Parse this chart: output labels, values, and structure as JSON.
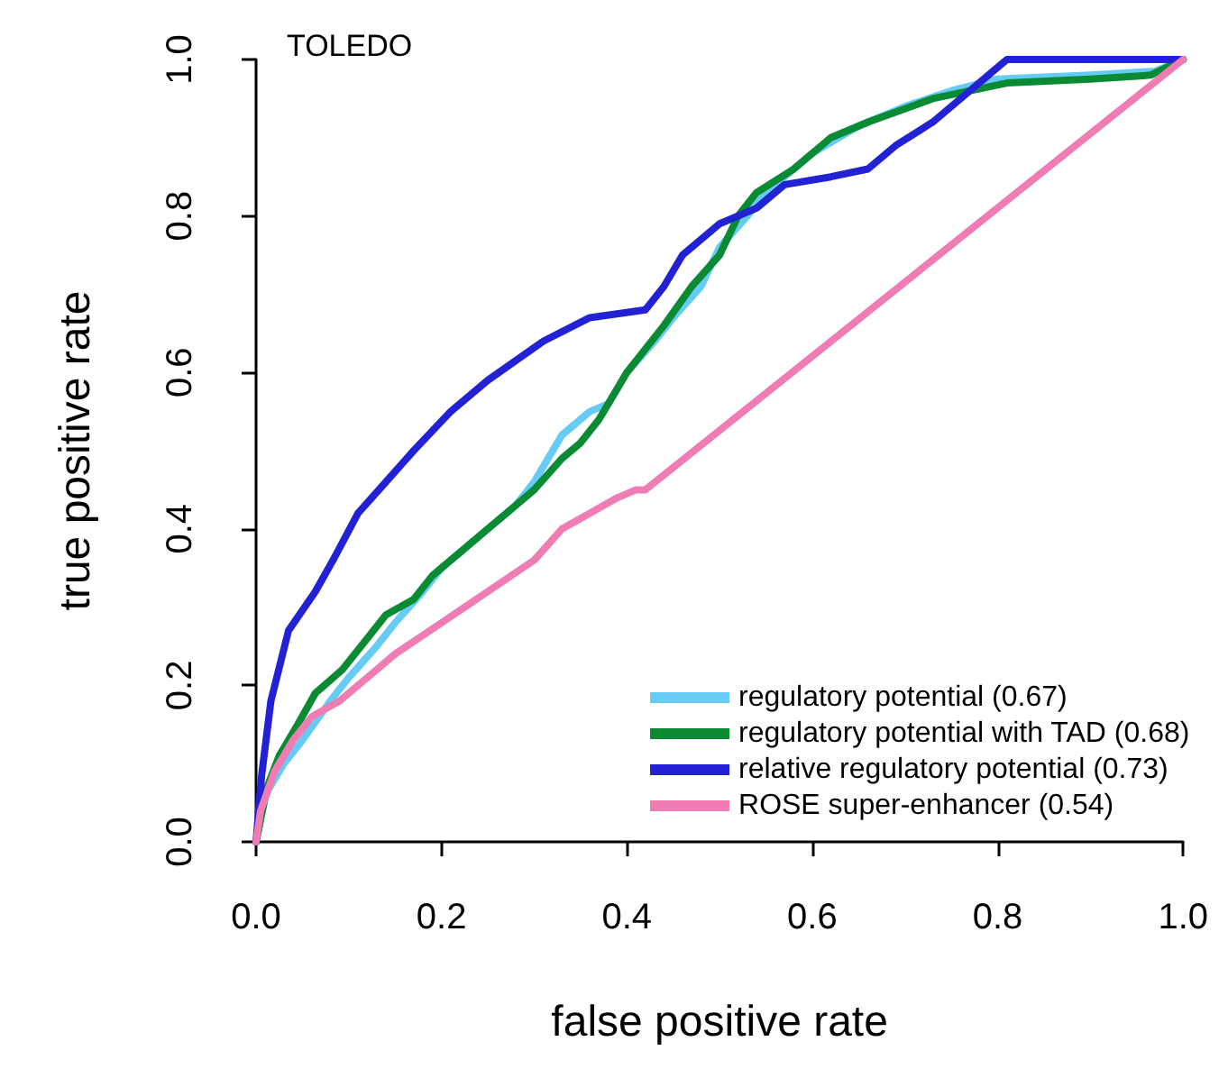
{
  "chart_data": {
    "type": "line",
    "title": "TOLEDO",
    "xlabel": "false positive rate",
    "ylabel": "true positive rate",
    "xlim": [
      0,
      1
    ],
    "ylim": [
      0,
      1
    ],
    "xticks": [
      {
        "value": 0,
        "label": "0.0"
      },
      0.2,
      0.4,
      0.6,
      0.8,
      {
        "value": 1,
        "label": "1.0"
      }
    ],
    "yticks": [
      {
        "value": 0,
        "label": "0.0"
      },
      0.2,
      0.4,
      0.6,
      0.8,
      {
        "value": 1,
        "label": "1.0"
      }
    ],
    "grid": false,
    "legend": "bottom right",
    "marker": "none",
    "line_style": "solid",
    "series": [
      {
        "name": "regulatory potential (0.67)",
        "color": "#66ccf5",
        "x": [
          0,
          0.01,
          0.03,
          0.05,
          0.08,
          0.1,
          0.13,
          0.15,
          0.18,
          0.2,
          0.23,
          0.25,
          0.28,
          0.3,
          0.33,
          0.36,
          0.38,
          0.4,
          0.43,
          0.45,
          0.48,
          0.5,
          0.53,
          0.55,
          0.58,
          0.6,
          0.65,
          0.7,
          0.75,
          0.8,
          0.9,
          0.97,
          1
        ],
        "values": [
          0,
          0.06,
          0.1,
          0.13,
          0.18,
          0.21,
          0.25,
          0.28,
          0.32,
          0.35,
          0.38,
          0.4,
          0.43,
          0.46,
          0.52,
          0.55,
          0.56,
          0.6,
          0.64,
          0.67,
          0.71,
          0.76,
          0.8,
          0.83,
          0.86,
          0.88,
          0.915,
          0.94,
          0.96,
          0.975,
          0.98,
          0.985,
          1
        ]
      },
      {
        "name": "regulatory potential with TAD (0.68)",
        "color": "#0a8a33",
        "x": [
          0,
          0.012,
          0.025,
          0.045,
          0.064,
          0.093,
          0.12,
          0.14,
          0.17,
          0.19,
          0.22,
          0.25,
          0.27,
          0.3,
          0.33,
          0.35,
          0.37,
          0.4,
          0.44,
          0.47,
          0.5,
          0.52,
          0.54,
          0.58,
          0.62,
          0.66,
          0.73,
          0.81,
          0.9,
          0.965,
          1
        ],
        "values": [
          0,
          0.07,
          0.11,
          0.15,
          0.19,
          0.22,
          0.26,
          0.29,
          0.31,
          0.34,
          0.37,
          0.4,
          0.42,
          0.45,
          0.49,
          0.51,
          0.54,
          0.6,
          0.66,
          0.71,
          0.75,
          0.8,
          0.83,
          0.86,
          0.9,
          0.92,
          0.95,
          0.97,
          0.975,
          0.98,
          1
        ]
      },
      {
        "name": "relative regulatory potential (0.73)",
        "color": "#2222d4",
        "x": [
          0,
          0.006,
          0.016,
          0.035,
          0.064,
          0.083,
          0.11,
          0.14,
          0.17,
          0.21,
          0.25,
          0.31,
          0.36,
          0.42,
          0.44,
          0.46,
          0.5,
          0.54,
          0.57,
          0.62,
          0.66,
          0.69,
          0.73,
          0.77,
          0.8,
          0.81,
          0.98,
          1
        ],
        "values": [
          0,
          0.085,
          0.18,
          0.27,
          0.32,
          0.36,
          0.42,
          0.46,
          0.5,
          0.55,
          0.59,
          0.64,
          0.67,
          0.68,
          0.71,
          0.75,
          0.79,
          0.81,
          0.84,
          0.85,
          0.86,
          0.89,
          0.92,
          0.96,
          0.99,
          1,
          1,
          1
        ]
      },
      {
        "name": "ROSE super-enhancer (0.54)",
        "color": "#f07cb4",
        "x": [
          0,
          0.005,
          0.02,
          0.04,
          0.06,
          0.09,
          0.12,
          0.15,
          0.2,
          0.25,
          0.3,
          0.33,
          0.36,
          0.39,
          0.41,
          0.42,
          1
        ],
        "values": [
          0,
          0.04,
          0.09,
          0.13,
          0.16,
          0.18,
          0.21,
          0.24,
          0.28,
          0.32,
          0.36,
          0.4,
          0.42,
          0.44,
          0.45,
          0.45,
          1
        ]
      }
    ]
  }
}
